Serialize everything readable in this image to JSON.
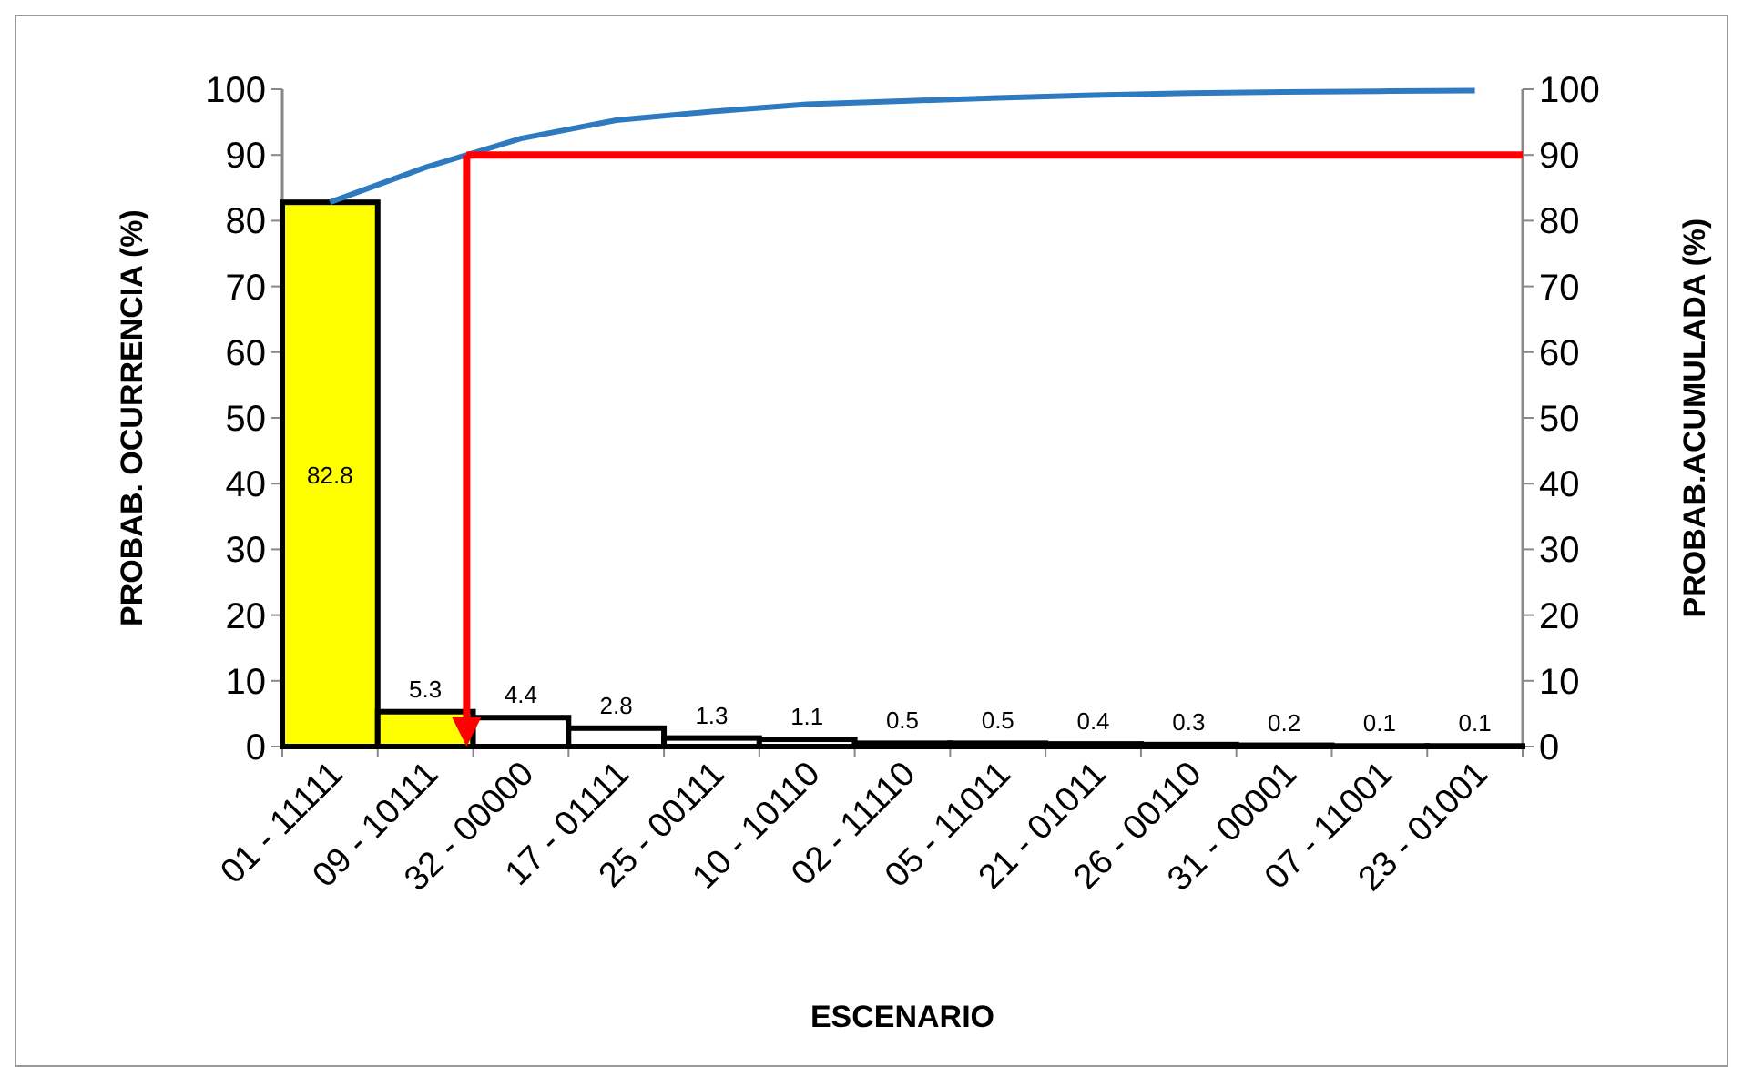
{
  "chart_data": {
    "type": "bar",
    "xlabel": "ESCENARIO",
    "ylabel": "PROBAB. OCURRENCIA (%)",
    "y2label": "PROBAB.ACUMULADA (%)",
    "categories": [
      "01 - 11111",
      "09 - 10111",
      "32 - 00000",
      "17 - 01111",
      "25 - 00111",
      "10 - 10110",
      "02 - 11110",
      "05 - 11011",
      "21 - 01011",
      "26 - 00110",
      "31 - 00001",
      "07 - 11001",
      "23 - 01001"
    ],
    "series": [
      {
        "values": [
          82.8,
          5.3,
          4.4,
          2.8,
          1.3,
          1.1,
          0.5,
          0.5,
          0.4,
          0.3,
          0.2,
          0.1,
          0.1
        ],
        "value_labels": [
          "82.8",
          "5.3",
          "4.4",
          "2.8",
          "1.3",
          "1.1",
          "0.5",
          "0.5",
          "0.4",
          "0.3",
          "0.2",
          "0.1",
          "0.1"
        ],
        "colors": [
          "#ffff00",
          "#ffff00",
          "#ffffff",
          "#ffffff",
          "#ffffff",
          "#ffffff",
          "#ffffff",
          "#ffffff",
          "#ffffff",
          "#ffffff",
          "#ffffff",
          "#ffffff",
          "#ffffff"
        ]
      },
      {
        "type": "line",
        "axis": "y2",
        "color": "#2e7ac0",
        "values": [
          82.8,
          88.1,
          92.5,
          95.3,
          96.6,
          97.7,
          98.2,
          98.7,
          99.1,
          99.4,
          99.6,
          99.7,
          99.8
        ]
      }
    ],
    "ylim": [
      0,
      100
    ],
    "yticks": [
      0,
      10,
      20,
      30,
      40,
      50,
      60,
      70,
      80,
      90,
      100
    ],
    "y2lim": [
      0,
      100
    ],
    "y2ticks": [
      0,
      10,
      20,
      30,
      40,
      50,
      60,
      70,
      80,
      90,
      100
    ],
    "ref_lines": [
      {
        "axis": "y2",
        "value": 90,
        "color": "#ff0000"
      }
    ],
    "grid": false,
    "marker": "none"
  }
}
